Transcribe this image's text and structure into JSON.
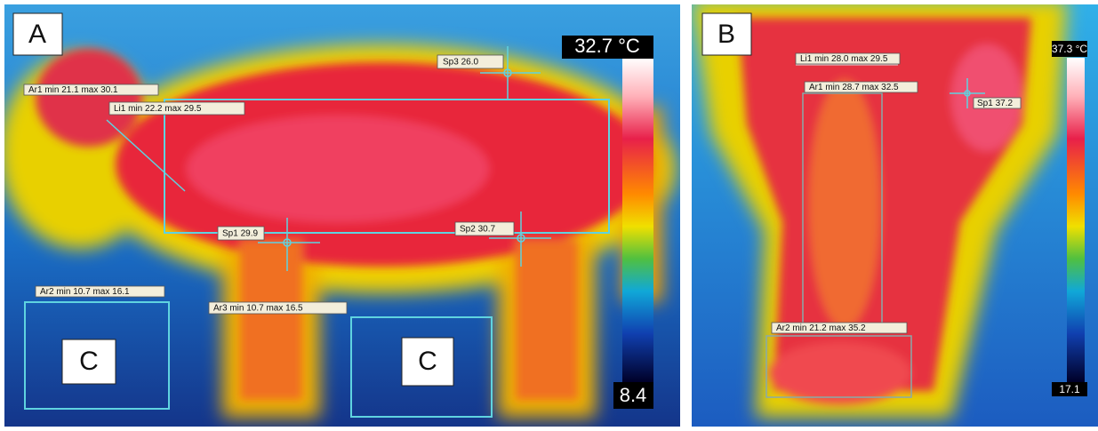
{
  "panels": [
    {
      "label": "A",
      "scale": {
        "max": "32.7 °C",
        "min": "8.4"
      },
      "annotations": [
        "Ar1 min 21.1 max 30.1",
        "Li1 min 22.2 max 29.5",
        "Sp3 26.0",
        "Sp1 29.9",
        "Sp2 30.7",
        "Ar2 min 10.7 max 16.1",
        "Ar3 min 10.7 max 16.5"
      ],
      "regions": [
        "C",
        "C"
      ]
    },
    {
      "label": "B",
      "scale": {
        "max": "37.3 °C",
        "min": "17.1"
      },
      "annotations": [
        "Li1 min 28.0 max 29.5",
        "Ar1 min 28.7 max 32.5",
        "Sp1 37.2",
        "Ar2 min 21.2 max 35.2"
      ]
    }
  ]
}
